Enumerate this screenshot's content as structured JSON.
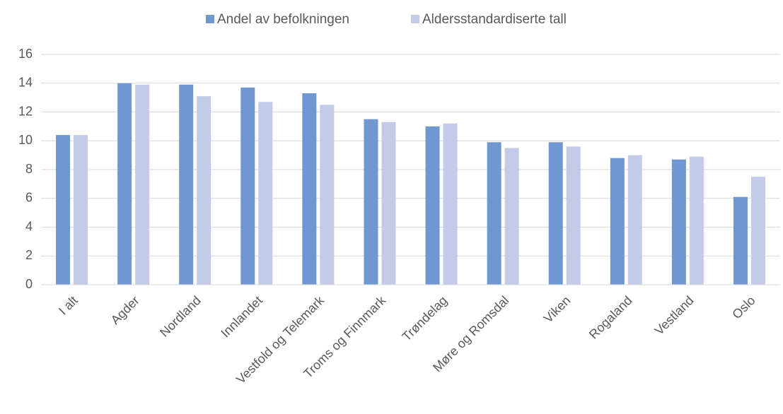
{
  "chart_data": {
    "type": "bar",
    "categories": [
      "I alt",
      "Agder",
      "Nordland",
      "Innlandet",
      "Vestfold og Telemark",
      "Troms og Finnmark",
      "Trøndelag",
      "Møre og Romsdal",
      "Viken",
      "Rogaland",
      "Vestland",
      "Oslo"
    ],
    "series": [
      {
        "name": "Andel av befolkningen",
        "color": "#7097d0",
        "values": [
          10.4,
          14.0,
          13.9,
          13.7,
          13.3,
          11.5,
          11.0,
          9.9,
          9.9,
          8.8,
          8.7,
          6.1
        ]
      },
      {
        "name": "Aldersstandardiserte tall",
        "color": "#c3cbe9",
        "values": [
          10.4,
          13.9,
          13.1,
          12.7,
          12.5,
          11.3,
          11.2,
          9.5,
          9.6,
          9.0,
          8.9,
          7.5
        ]
      }
    ],
    "ylim": [
      0,
      16
    ],
    "yticks": [
      0,
      2,
      4,
      6,
      8,
      10,
      12,
      14,
      16
    ],
    "grid": true,
    "legend": "top"
  }
}
